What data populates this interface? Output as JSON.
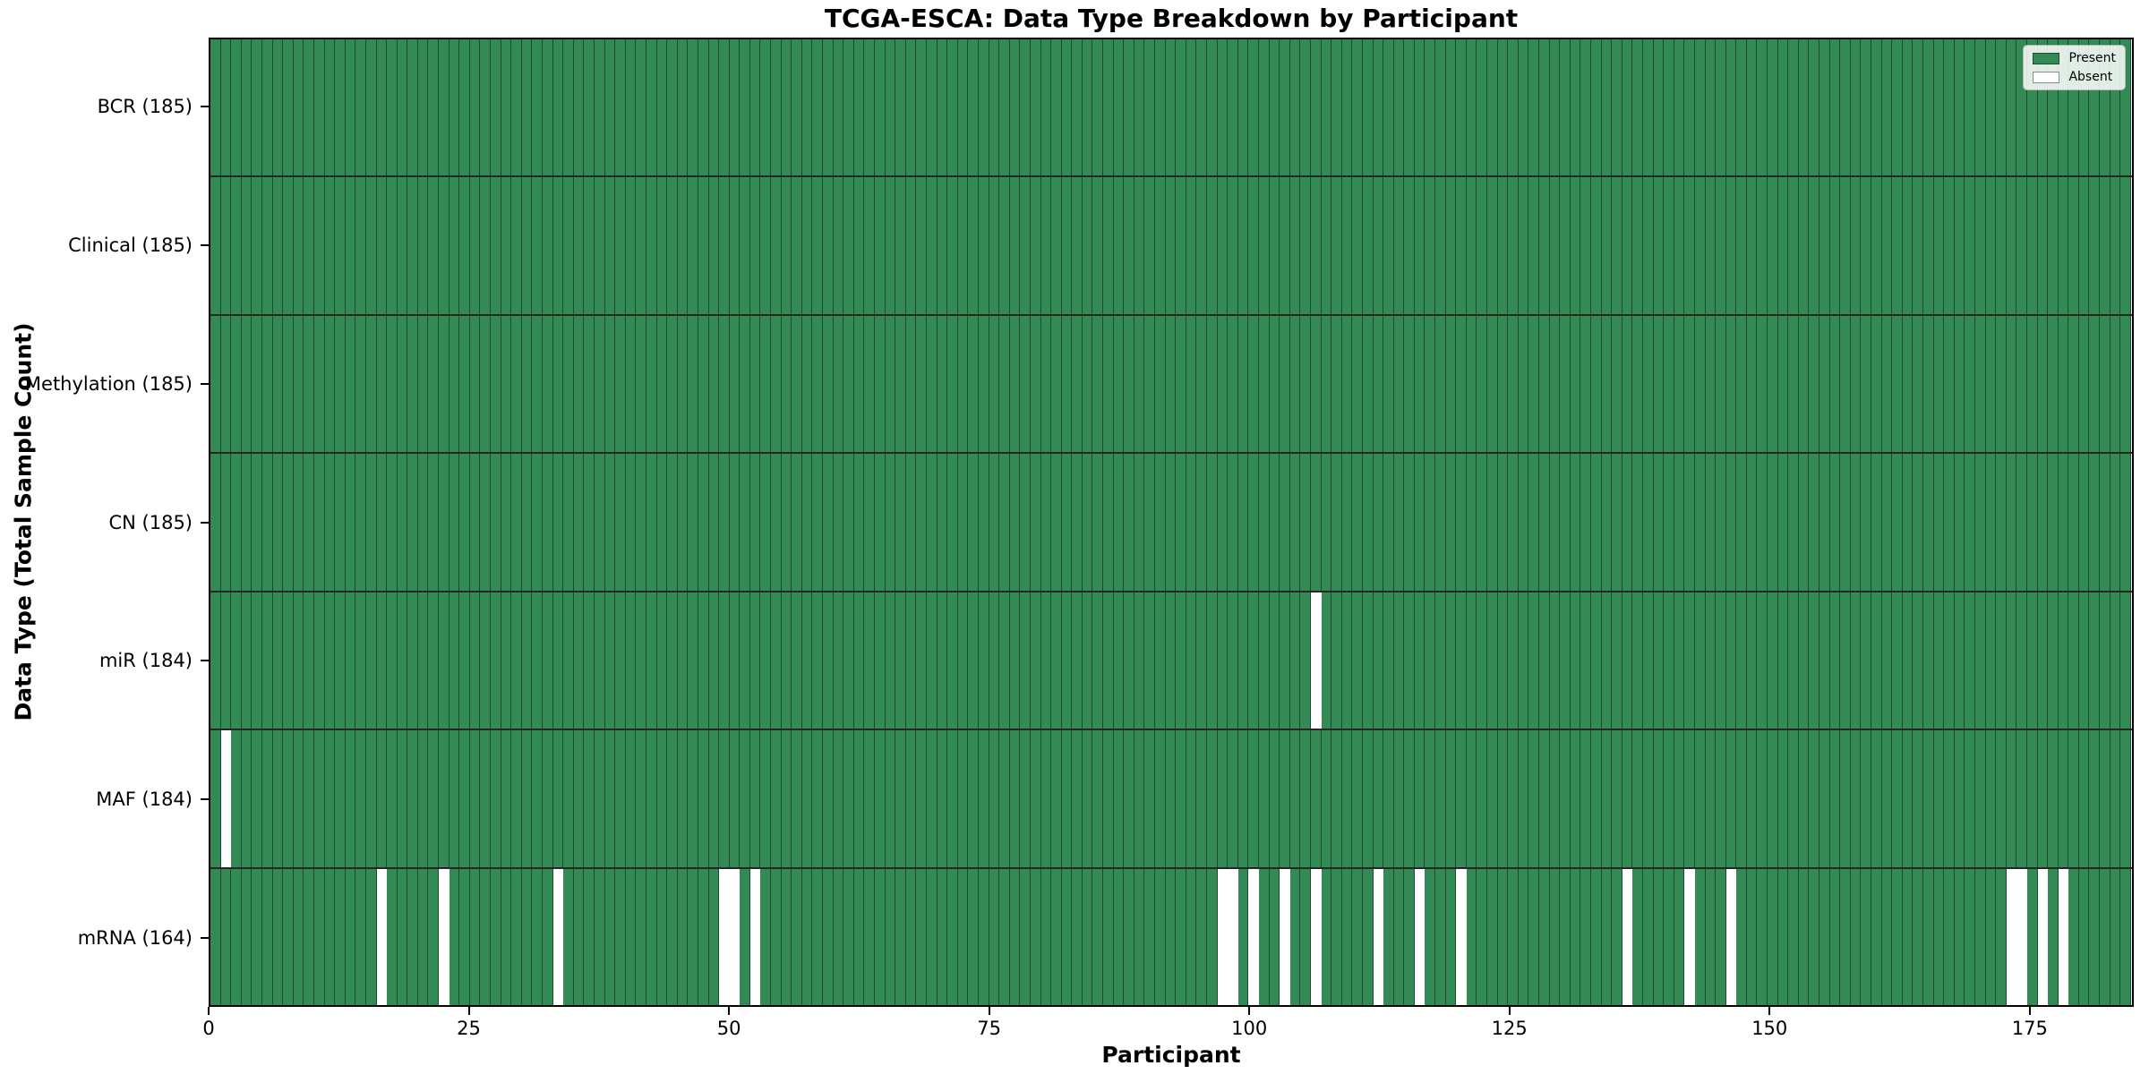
{
  "chart_data": {
    "type": "heatmap",
    "title": "TCGA-ESCA: Data Type Breakdown by Participant",
    "xlabel": "Participant",
    "ylabel": "Data Type (Total Sample Count)",
    "n_participants": 185,
    "x_range": [
      0,
      184
    ],
    "x_ticks": [
      0,
      25,
      50,
      75,
      100,
      125,
      150,
      175
    ],
    "grid": false,
    "legend_position": "upper right",
    "legend_items": [
      {
        "label": "Present",
        "color": "#338a55"
      },
      {
        "label": "Absent",
        "color": "#ffffff"
      }
    ],
    "rows": [
      {
        "label": "BCR (185)",
        "data_type": "BCR",
        "total_sample_count": 185,
        "absent_participants": []
      },
      {
        "label": "Clinical (185)",
        "data_type": "Clinical",
        "total_sample_count": 185,
        "absent_participants": []
      },
      {
        "label": "Methylation (185)",
        "data_type": "Methylation",
        "total_sample_count": 185,
        "absent_participants": []
      },
      {
        "label": "CN (185)",
        "data_type": "CN",
        "total_sample_count": 185,
        "absent_participants": []
      },
      {
        "label": "miR (184)",
        "data_type": "miR",
        "total_sample_count": 184,
        "absent_participants": [
          106
        ]
      },
      {
        "label": "MAF (184)",
        "data_type": "MAF",
        "total_sample_count": 184,
        "absent_participants": [
          1
        ]
      },
      {
        "label": "mRNA (164)",
        "data_type": "mRNA",
        "total_sample_count": 164,
        "absent_participants": [
          16,
          22,
          33,
          49,
          50,
          52,
          97,
          98,
          100,
          103,
          106,
          112,
          116,
          120,
          136,
          142,
          146,
          173,
          174,
          176,
          178
        ]
      }
    ]
  },
  "colors": {
    "present": "#338a55",
    "absent": "#ffffff",
    "cell_edge": "rgba(0,0,0,0.45)",
    "row_divider": "rgba(0,0,0,0.85)",
    "spine": "#000000",
    "legend_border": "#b3b3b3",
    "legend_bg": "rgba(255,255,255,0.85)"
  }
}
